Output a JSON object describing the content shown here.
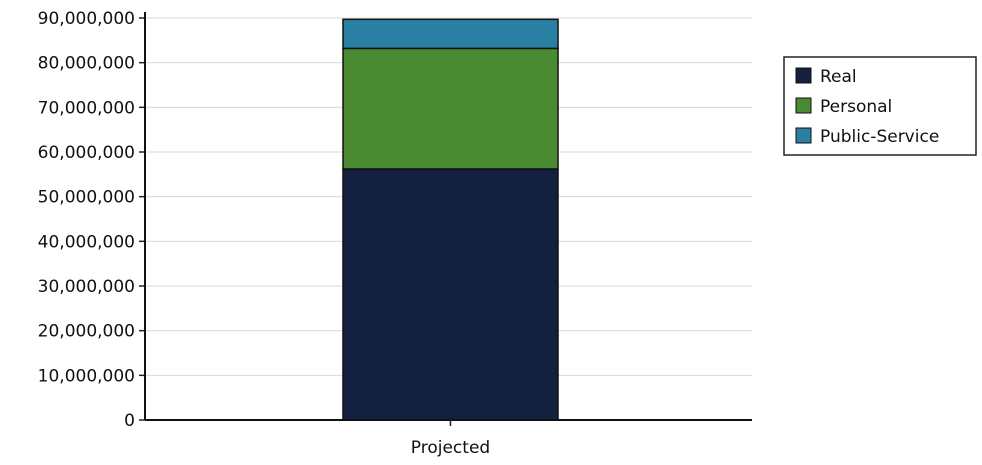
{
  "chart_data": {
    "type": "bar",
    "stacked": true,
    "categories": [
      "Projected"
    ],
    "series": [
      {
        "name": "Real",
        "values": [
          56200000
        ],
        "color": "#13203f"
      },
      {
        "name": "Personal",
        "values": [
          27000000
        ],
        "color": "#4a8a33"
      },
      {
        "name": "Public-Service",
        "values": [
          6500000
        ],
        "color": "#2a7fa4"
      }
    ],
    "ylim": [
      0,
      90000000
    ],
    "y_ticks": [
      0,
      10000000,
      20000000,
      30000000,
      40000000,
      50000000,
      60000000,
      70000000,
      80000000,
      90000000
    ],
    "y_tick_labels": [
      "0",
      "10,000,000",
      "20,000,000",
      "30,000,000",
      "40,000,000",
      "50,000,000",
      "60,000,000",
      "70,000,000",
      "80,000,000",
      "90,000,000"
    ],
    "grid": true,
    "legend_position": "right"
  }
}
